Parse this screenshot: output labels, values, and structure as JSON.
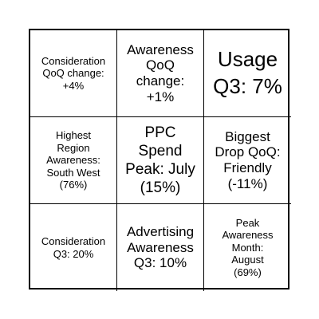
{
  "board": {
    "cells": [
      {
        "text": "Consideration\nQoQ change:\n+4%"
      },
      {
        "text": "Awareness\nQoQ\nchange:\n+1%"
      },
      {
        "text": "Usage\nQ3: 7%"
      },
      {
        "text": "Highest\nRegion\nAwareness:\nSouth West\n(76%)"
      },
      {
        "text": "PPC\nSpend\nPeak: July\n(15%)"
      },
      {
        "text": "Biggest\nDrop QoQ:\nFriendly\n(-11%)"
      },
      {
        "text": "Consideration\nQ3: 20%"
      },
      {
        "text": "Advertising\nAwareness\nQ3: 10%"
      },
      {
        "text": "Peak\nAwareness\nMonth:\nAugust\n(69%)"
      }
    ]
  }
}
